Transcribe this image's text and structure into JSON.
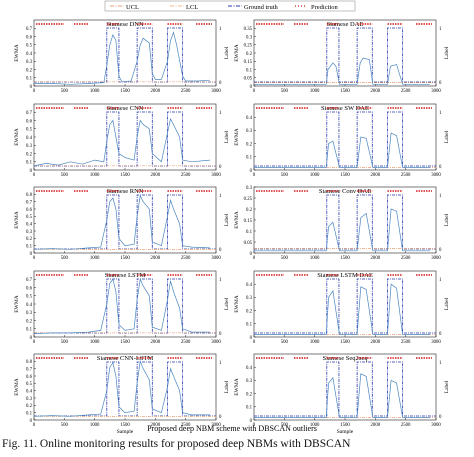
{
  "legend": {
    "items": [
      {
        "label": "UCL",
        "color": "#e8a07a",
        "style": "dashdot"
      },
      {
        "label": "LCL",
        "color": "#f0b890",
        "style": "dashdot"
      },
      {
        "label": "Ground truth",
        "color": "#2b3db0",
        "style": "dashdot"
      },
      {
        "label": "Prediction",
        "color": "#d11a1a",
        "style": "marker"
      }
    ]
  },
  "figure_xlabel": "Proposed deep NBM scheme with DBSCAN outliers",
  "caption": "Fig. 11.   Online monitoring results for proposed deep NBMs with DBSCAN",
  "colors": {
    "ewma": "#4a86c0",
    "ucl": "#e08a60",
    "truth": "#2233aa",
    "pred": "#d11a1a"
  },
  "chart_data": [
    {
      "type": "line",
      "title": "Siamese DNN",
      "ylabel": "EWMA",
      "y2label": "Label",
      "xlabel": "",
      "xlim": [
        0,
        3000
      ],
      "ylim": [
        0,
        0.8
      ],
      "yticks": [
        "0",
        "0.1",
        "0.2",
        "0.3",
        "0.4",
        "0.5",
        "0.6",
        "0.7"
      ],
      "xticks": [
        "0",
        "500",
        "1000",
        "1500",
        "2000",
        "2500",
        "3000"
      ],
      "y2ticks": [
        "0",
        "1"
      ],
      "ucl": 0.05,
      "lcl": 0.0,
      "fault_intervals": [
        [
          1200,
          1400
        ],
        [
          1700,
          1950
        ],
        [
          2200,
          2450
        ]
      ],
      "series": [
        {
          "x": [
            0,
            300,
            600,
            900,
            1150,
            1200,
            1250,
            1300,
            1350,
            1400,
            1450,
            1600,
            1700,
            1750,
            1800,
            1900,
            1950,
            2000,
            2100,
            2200,
            2250,
            2300,
            2350,
            2450,
            2500,
            2700,
            2900
          ],
          "y": [
            0.03,
            0.03,
            0.02,
            0.03,
            0.04,
            0.25,
            0.5,
            0.62,
            0.55,
            0.12,
            0.05,
            0.06,
            0.3,
            0.5,
            0.58,
            0.52,
            0.15,
            0.08,
            0.08,
            0.3,
            0.55,
            0.65,
            0.5,
            0.12,
            0.06,
            0.06,
            0.07
          ]
        }
      ]
    },
    {
      "type": "line",
      "title": "Siamese DAE",
      "ylabel": "EWMA",
      "y2label": "Label",
      "xlabel": "",
      "xlim": [
        0,
        3000
      ],
      "ylim": [
        0,
        0.4
      ],
      "yticks": [
        "0",
        "0.05",
        "0.1",
        "0.15",
        "0.2",
        "0.25",
        "0.3",
        "0.35"
      ],
      "xticks": [
        "0",
        "500",
        "1000",
        "1500",
        "2000",
        "2500",
        "3000"
      ],
      "y2ticks": [
        "0",
        "1"
      ],
      "ucl": 0.02,
      "lcl": 0.0,
      "fault_intervals": [
        [
          1200,
          1400
        ],
        [
          1700,
          1950
        ],
        [
          2200,
          2450
        ]
      ],
      "series": [
        {
          "x": [
            0,
            500,
            1000,
            1190,
            1220,
            1300,
            1350,
            1410,
            1500,
            1700,
            1750,
            1800,
            1900,
            1960,
            2100,
            2200,
            2250,
            2350,
            2450,
            2600,
            2900
          ],
          "y": [
            0.01,
            0.01,
            0.01,
            0.01,
            0.1,
            0.14,
            0.12,
            0.01,
            0.01,
            0.01,
            0.14,
            0.17,
            0.16,
            0.01,
            0.01,
            0.01,
            0.12,
            0.13,
            0.01,
            0.01,
            0.01
          ]
        }
      ]
    },
    {
      "type": "line",
      "title": "Siamese CNN",
      "ylabel": "EWMA",
      "y2label": "Label",
      "xlabel": "",
      "xlim": [
        0,
        3000
      ],
      "ylim": [
        0,
        0.8
      ],
      "yticks": [
        "0",
        "0.1",
        "0.2",
        "0.3",
        "0.4",
        "0.5",
        "0.6",
        "0.7"
      ],
      "xticks": [
        "0",
        "500",
        "1000",
        "1500",
        "2000",
        "2500",
        "3000"
      ],
      "y2ticks": [
        "0",
        "1"
      ],
      "ucl": 0.05,
      "lcl": 0.0,
      "fault_intervals": [
        [
          1200,
          1400
        ],
        [
          1700,
          1950
        ],
        [
          2200,
          2450
        ]
      ],
      "series": [
        {
          "x": [
            0,
            200,
            400,
            600,
            800,
            1000,
            1150,
            1200,
            1250,
            1300,
            1400,
            1500,
            1650,
            1700,
            1750,
            1800,
            1900,
            1950,
            2100,
            2200,
            2250,
            2300,
            2400,
            2450,
            2600,
            2900
          ],
          "y": [
            0.05,
            0.08,
            0.06,
            0.1,
            0.07,
            0.12,
            0.1,
            0.35,
            0.55,
            0.6,
            0.2,
            0.15,
            0.12,
            0.4,
            0.6,
            0.55,
            0.5,
            0.2,
            0.1,
            0.45,
            0.62,
            0.55,
            0.4,
            0.12,
            0.1,
            0.12
          ]
        }
      ]
    },
    {
      "type": "line",
      "title": "Siamese SW DAE",
      "ylabel": "EWMA",
      "y2label": "Label",
      "xlabel": "",
      "xlim": [
        0,
        3000
      ],
      "ylim": [
        0,
        0.5
      ],
      "yticks": [
        "0",
        "0.1",
        "0.2",
        "0.3",
        "0.4"
      ],
      "xticks": [
        "0",
        "500",
        "1000",
        "1500",
        "2000",
        "2500",
        "3000"
      ],
      "y2ticks": [
        "0",
        "1"
      ],
      "ucl": 0.02,
      "lcl": 0.0,
      "fault_intervals": [
        [
          1200,
          1400
        ],
        [
          1700,
          1950
        ],
        [
          2200,
          2450
        ]
      ],
      "series": [
        {
          "x": [
            0,
            500,
            1000,
            1190,
            1230,
            1300,
            1410,
            1500,
            1700,
            1760,
            1850,
            1960,
            2100,
            2200,
            2260,
            2350,
            2450,
            2600,
            2900
          ],
          "y": [
            0.02,
            0.02,
            0.02,
            0.02,
            0.2,
            0.22,
            0.02,
            0.02,
            0.02,
            0.25,
            0.24,
            0.02,
            0.02,
            0.02,
            0.28,
            0.26,
            0.02,
            0.02,
            0.02
          ]
        }
      ]
    },
    {
      "type": "line",
      "title": "Siamese RNN",
      "ylabel": "EWMA",
      "y2label": "Label",
      "xlabel": "",
      "xlim": [
        0,
        3000
      ],
      "ylim": [
        0,
        0.9
      ],
      "yticks": [
        "0",
        "0.1",
        "0.2",
        "0.3",
        "0.4",
        "0.5",
        "0.6",
        "0.7",
        "0.8"
      ],
      "xticks": [
        "0",
        "500",
        "1000",
        "1500",
        "2000",
        "2500",
        "3000"
      ],
      "y2ticks": [
        "0",
        "1"
      ],
      "ucl": 0.05,
      "lcl": 0.0,
      "fault_intervals": [
        [
          1200,
          1400
        ],
        [
          1700,
          1950
        ],
        [
          2200,
          2450
        ]
      ],
      "series": [
        {
          "x": [
            0,
            300,
            600,
            900,
            1100,
            1200,
            1250,
            1300,
            1350,
            1400,
            1500,
            1650,
            1700,
            1750,
            1800,
            1900,
            1950,
            2100,
            2200,
            2250,
            2300,
            2400,
            2450,
            2600,
            2900
          ],
          "y": [
            0.05,
            0.06,
            0.05,
            0.07,
            0.08,
            0.45,
            0.7,
            0.75,
            0.6,
            0.2,
            0.1,
            0.12,
            0.5,
            0.78,
            0.7,
            0.6,
            0.15,
            0.1,
            0.5,
            0.72,
            0.6,
            0.4,
            0.1,
            0.08,
            0.07
          ]
        }
      ]
    },
    {
      "type": "line",
      "title": "Siamese Conv DAE",
      "ylabel": "EWMA",
      "y2label": "Label",
      "xlabel": "",
      "xlim": [
        0,
        3000
      ],
      "ylim": [
        0,
        0.3
      ],
      "yticks": [
        "0",
        "0.05",
        "0.1",
        "0.15",
        "0.2",
        "0.25",
        "0.3"
      ],
      "xticks": [
        "0",
        "500",
        "1000",
        "1500",
        "2000",
        "2500",
        "3000"
      ],
      "y2ticks": [
        "0",
        "1"
      ],
      "ucl": 0.02,
      "lcl": 0.0,
      "fault_intervals": [
        [
          1200,
          1400
        ],
        [
          1700,
          1950
        ],
        [
          2200,
          2450
        ]
      ],
      "series": [
        {
          "x": [
            0,
            500,
            1000,
            1190,
            1230,
            1300,
            1410,
            1500,
            1700,
            1760,
            1850,
            1960,
            2100,
            2200,
            2260,
            2350,
            2450,
            2600,
            2900
          ],
          "y": [
            0.01,
            0.01,
            0.01,
            0.01,
            0.12,
            0.14,
            0.01,
            0.01,
            0.01,
            0.16,
            0.18,
            0.01,
            0.01,
            0.01,
            0.2,
            0.19,
            0.01,
            0.01,
            0.01
          ]
        }
      ]
    },
    {
      "type": "line",
      "title": "Siamese LSTM",
      "ylabel": "EWMA",
      "y2label": "Label",
      "xlabel": "",
      "xlim": [
        0,
        3000
      ],
      "ylim": [
        0,
        0.8
      ],
      "yticks": [
        "0",
        "0.1",
        "0.2",
        "0.3",
        "0.4",
        "0.5",
        "0.6",
        "0.7"
      ],
      "xticks": [
        "0",
        "500",
        "1000",
        "1500",
        "2000",
        "2500",
        "3000"
      ],
      "y2ticks": [
        "0",
        "1"
      ],
      "ucl": 0.05,
      "lcl": 0.0,
      "fault_intervals": [
        [
          1200,
          1400
        ],
        [
          1700,
          1950
        ],
        [
          2200,
          2450
        ]
      ],
      "series": [
        {
          "x": [
            0,
            300,
            600,
            900,
            1100,
            1200,
            1250,
            1300,
            1350,
            1400,
            1500,
            1650,
            1700,
            1750,
            1800,
            1900,
            1950,
            2100,
            2200,
            2250,
            2300,
            2400,
            2450,
            2600,
            2900
          ],
          "y": [
            0.04,
            0.05,
            0.05,
            0.06,
            0.08,
            0.4,
            0.65,
            0.7,
            0.55,
            0.15,
            0.08,
            0.1,
            0.45,
            0.7,
            0.62,
            0.5,
            0.12,
            0.08,
            0.45,
            0.68,
            0.55,
            0.35,
            0.1,
            0.06,
            0.06
          ]
        }
      ]
    },
    {
      "type": "line",
      "title": "Siamese LSTM DAE",
      "ylabel": "EWMA",
      "y2label": "Label",
      "xlabel": "",
      "xlim": [
        0,
        3000
      ],
      "ylim": [
        0,
        0.5
      ],
      "yticks": [
        "0",
        "0.1",
        "0.2",
        "0.3",
        "0.4"
      ],
      "xticks": [
        "0",
        "500",
        "1000",
        "1500",
        "2000",
        "2500",
        "3000"
      ],
      "y2ticks": [
        "0",
        "1"
      ],
      "ucl": 0.02,
      "lcl": 0.0,
      "fault_intervals": [
        [
          1200,
          1400
        ],
        [
          1700,
          1950
        ],
        [
          2200,
          2450
        ]
      ],
      "series": [
        {
          "x": [
            0,
            500,
            1000,
            1190,
            1230,
            1300,
            1410,
            1500,
            1700,
            1760,
            1850,
            1960,
            2100,
            2200,
            2260,
            2350,
            2450,
            2600,
            2900
          ],
          "y": [
            0.02,
            0.02,
            0.02,
            0.02,
            0.3,
            0.35,
            0.02,
            0.02,
            0.02,
            0.38,
            0.36,
            0.02,
            0.02,
            0.02,
            0.4,
            0.37,
            0.02,
            0.02,
            0.02
          ]
        }
      ]
    },
    {
      "type": "line",
      "title": "Siamese CNN-LSTM",
      "ylabel": "EWMA",
      "y2label": "Label",
      "xlabel": "Sample",
      "xlim": [
        0,
        3000
      ],
      "ylim": [
        0,
        0.9
      ],
      "yticks": [
        "0",
        "0.1",
        "0.2",
        "0.3",
        "0.4",
        "0.5",
        "0.6",
        "0.7",
        "0.8"
      ],
      "xticks": [
        "0",
        "500",
        "1000",
        "1500",
        "2000",
        "2500",
        "3000"
      ],
      "y2ticks": [
        "0",
        "1"
      ],
      "ucl": 0.05,
      "lcl": 0.0,
      "fault_intervals": [
        [
          1200,
          1400
        ],
        [
          1700,
          1950
        ],
        [
          2200,
          2450
        ]
      ],
      "series": [
        {
          "x": [
            0,
            300,
            600,
            900,
            1100,
            1200,
            1250,
            1300,
            1350,
            1400,
            1500,
            1650,
            1700,
            1750,
            1800,
            1900,
            1950,
            2100,
            2200,
            2250,
            2300,
            2400,
            2450,
            2600,
            2900
          ],
          "y": [
            0.05,
            0.06,
            0.05,
            0.07,
            0.08,
            0.4,
            0.72,
            0.78,
            0.6,
            0.18,
            0.1,
            0.12,
            0.5,
            0.8,
            0.7,
            0.55,
            0.15,
            0.1,
            0.45,
            0.7,
            0.6,
            0.4,
            0.1,
            0.07,
            0.07
          ]
        }
      ]
    },
    {
      "type": "line",
      "title": "Siamese Seq2seq",
      "ylabel": "EWMA",
      "y2label": "Label",
      "xlabel": "Sample",
      "xlim": [
        0,
        3000
      ],
      "ylim": [
        0,
        0.5
      ],
      "yticks": [
        "0",
        "0.1",
        "0.2",
        "0.3",
        "0.4"
      ],
      "xticks": [
        "0",
        "500",
        "1000",
        "1500",
        "2000",
        "2500",
        "3000"
      ],
      "y2ticks": [
        "0",
        "1"
      ],
      "ucl": 0.02,
      "lcl": 0.0,
      "fault_intervals": [
        [
          1200,
          1400
        ],
        [
          1700,
          1950
        ],
        [
          2200,
          2450
        ]
      ],
      "series": [
        {
          "x": [
            0,
            500,
            1000,
            1190,
            1230,
            1300,
            1410,
            1500,
            1700,
            1760,
            1850,
            1960,
            2100,
            2200,
            2260,
            2350,
            2450,
            2600,
            2900
          ],
          "y": [
            0.02,
            0.02,
            0.02,
            0.02,
            0.28,
            0.32,
            0.02,
            0.02,
            0.02,
            0.35,
            0.33,
            0.02,
            0.02,
            0.02,
            0.3,
            0.28,
            0.02,
            0.02,
            0.02
          ]
        }
      ]
    }
  ]
}
